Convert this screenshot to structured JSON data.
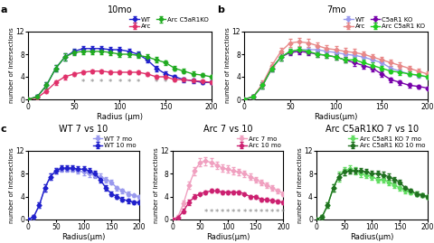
{
  "chart_data": [
    {
      "type": "line",
      "panel_label": "a",
      "title": "10mo",
      "x_label": "Radius (μm)",
      "y_label": "number of intersections",
      "x": [
        0,
        10,
        20,
        30,
        40,
        50,
        60,
        70,
        80,
        90,
        100,
        110,
        120,
        130,
        140,
        150,
        160,
        170,
        180,
        190,
        200
      ],
      "xlim": [
        0,
        200
      ],
      "xticks": [
        0,
        50,
        100,
        150,
        200
      ],
      "ylim": [
        0,
        12
      ],
      "yticks": [
        0,
        4,
        8,
        12
      ],
      "marker": "diamond",
      "legend": "upper right",
      "series": [
        {
          "name": "WT",
          "color": "#2020cc",
          "values": [
            0,
            0.5,
            2.5,
            5.5,
            7.5,
            8.5,
            9.0,
            9.0,
            9.0,
            8.8,
            8.8,
            8.5,
            8.0,
            7.0,
            5.5,
            4.5,
            4.0,
            3.5,
            3.3,
            3.0,
            3.0
          ],
          "err": [
            0,
            0.3,
            0.5,
            0.6,
            0.6,
            0.5,
            0.5,
            0.5,
            0.5,
            0.5,
            0.5,
            0.5,
            0.5,
            0.5,
            0.5,
            0.4,
            0.4,
            0.4,
            0.4,
            0.3,
            0.3
          ]
        },
        {
          "name": "Arc",
          "color": "#e0306a",
          "values": [
            0,
            0.3,
            1.5,
            3.0,
            4.0,
            4.5,
            4.8,
            5.0,
            5.0,
            4.8,
            4.8,
            4.8,
            4.8,
            4.5,
            4.0,
            4.0,
            3.5,
            3.5,
            3.3,
            3.2,
            3.0
          ],
          "err": [
            0,
            0.2,
            0.4,
            0.4,
            0.4,
            0.3,
            0.3,
            0.3,
            0.3,
            0.3,
            0.3,
            0.3,
            0.3,
            0.3,
            0.3,
            0.3,
            0.3,
            0.3,
            0.3,
            0.3,
            0.3
          ]
        },
        {
          "name": "Arc C5aR1KO",
          "color": "#20aa20",
          "values": [
            0,
            0.5,
            2.5,
            5.5,
            7.5,
            8.3,
            8.5,
            8.5,
            8.5,
            8.3,
            8.0,
            8.0,
            7.8,
            7.5,
            7.0,
            6.5,
            5.5,
            5.0,
            4.5,
            4.3,
            4.0
          ],
          "err": [
            0,
            0.3,
            0.5,
            0.6,
            0.6,
            0.5,
            0.5,
            0.5,
            0.5,
            0.5,
            0.5,
            0.5,
            0.5,
            0.5,
            0.5,
            0.4,
            0.4,
            0.4,
            0.4,
            0.3,
            0.3
          ]
        }
      ],
      "annotations": [
        {
          "text": "*",
          "x": 60,
          "y": 2.2
        },
        {
          "text": "*",
          "x": 70,
          "y": 2.2
        },
        {
          "text": "*",
          "x": 80,
          "y": 2.2
        },
        {
          "text": "*",
          "x": 90,
          "y": 2.2
        },
        {
          "text": "*",
          "x": 100,
          "y": 2.2
        },
        {
          "text": "*",
          "x": 110,
          "y": 2.2
        },
        {
          "text": "*",
          "x": 120,
          "y": 2.2
        },
        {
          "text": "*",
          "x": 140,
          "y": 2.2
        },
        {
          "text": "*",
          "x": 150,
          "y": 2.2
        },
        {
          "text": "*",
          "x": 160,
          "y": 2.2
        },
        {
          "text": "*",
          "x": 170,
          "y": 2.2
        }
      ]
    },
    {
      "type": "line",
      "panel_label": "b",
      "title": "7mo",
      "x_label": "Radius(μm)",
      "y_label": "number of intersections",
      "x": [
        0,
        10,
        20,
        30,
        40,
        50,
        60,
        70,
        80,
        90,
        100,
        110,
        120,
        130,
        140,
        150,
        160,
        170,
        180,
        190,
        200
      ],
      "xlim": [
        0,
        200
      ],
      "xticks": [
        0,
        50,
        100,
        150,
        200
      ],
      "ylim": [
        0,
        12
      ],
      "yticks": [
        0,
        4,
        8,
        12
      ],
      "marker": "diamond",
      "legend": "upper right",
      "series": [
        {
          "name": "WT",
          "color": "#9999ee",
          "values": [
            0,
            0.5,
            2.5,
            5.5,
            7.5,
            8.5,
            8.8,
            8.8,
            8.8,
            8.5,
            8.3,
            8.0,
            7.8,
            7.5,
            7.0,
            6.5,
            5.5,
            5.0,
            4.5,
            4.2,
            4.0
          ],
          "err": [
            0,
            0.3,
            0.5,
            0.6,
            0.6,
            0.5,
            0.5,
            0.5,
            0.5,
            0.5,
            0.5,
            0.5,
            0.5,
            0.5,
            0.5,
            0.4,
            0.4,
            0.4,
            0.4,
            0.3,
            0.3
          ]
        },
        {
          "name": "Arc",
          "color": "#e88888",
          "values": [
            0,
            0.5,
            2.8,
            6.0,
            8.5,
            10.0,
            10.2,
            10.0,
            9.5,
            9.0,
            8.8,
            8.5,
            8.3,
            8.0,
            7.5,
            7.0,
            6.5,
            6.0,
            5.5,
            5.0,
            4.5
          ],
          "err": [
            0,
            0.3,
            0.5,
            0.6,
            0.7,
            0.7,
            0.7,
            0.7,
            0.6,
            0.6,
            0.6,
            0.6,
            0.6,
            0.5,
            0.5,
            0.5,
            0.5,
            0.5,
            0.5,
            0.4,
            0.4
          ]
        },
        {
          "name": "C5aR1 KO",
          "color": "#7700aa",
          "values": [
            0,
            0.5,
            2.5,
            5.5,
            7.5,
            8.3,
            8.5,
            8.3,
            8.0,
            7.8,
            7.5,
            7.0,
            6.5,
            6.0,
            5.5,
            4.5,
            3.5,
            3.0,
            2.5,
            2.3,
            2.0
          ],
          "err": [
            0,
            0.3,
            0.5,
            0.6,
            0.6,
            0.5,
            0.5,
            0.5,
            0.5,
            0.5,
            0.5,
            0.5,
            0.5,
            0.5,
            0.5,
            0.5,
            0.4,
            0.4,
            0.4,
            0.3,
            0.3
          ]
        },
        {
          "name": "Arc C5aR1 KO",
          "color": "#20cc20",
          "values": [
            0,
            0.5,
            2.5,
            5.5,
            7.5,
            8.5,
            8.8,
            8.5,
            8.0,
            7.8,
            7.5,
            7.0,
            7.0,
            6.5,
            6.0,
            5.5,
            5.0,
            4.8,
            4.5,
            4.3,
            4.0
          ],
          "err": [
            0,
            0.3,
            0.5,
            0.6,
            0.6,
            0.5,
            0.5,
            0.5,
            0.5,
            0.5,
            0.5,
            0.5,
            0.5,
            0.5,
            0.5,
            0.4,
            0.4,
            0.4,
            0.4,
            0.3,
            0.3
          ]
        }
      ]
    },
    {
      "type": "line",
      "panel_label": "c",
      "title": "WT 7 vs 10",
      "x_label": "Radius(μm)",
      "y_label": "number of intersections",
      "x": [
        0,
        10,
        20,
        30,
        40,
        50,
        60,
        70,
        80,
        90,
        100,
        110,
        120,
        130,
        140,
        150,
        160,
        170,
        180,
        190,
        200
      ],
      "xlim": [
        0,
        200
      ],
      "xticks": [
        0,
        50,
        100,
        150,
        200
      ],
      "ylim": [
        0,
        12
      ],
      "yticks": [
        0,
        4,
        8,
        12
      ],
      "marker": "diamond",
      "legend": "upper right",
      "series": [
        {
          "name": "WT 7 mo",
          "color": "#9999ee",
          "values": [
            0,
            0.5,
            2.5,
            5.5,
            7.5,
            8.5,
            8.8,
            8.8,
            8.8,
            8.5,
            8.3,
            8.0,
            7.8,
            7.5,
            7.0,
            6.5,
            5.5,
            5.0,
            4.5,
            4.2,
            4.0
          ],
          "err": [
            0,
            0.3,
            0.5,
            0.6,
            0.6,
            0.5,
            0.5,
            0.5,
            0.5,
            0.5,
            0.5,
            0.5,
            0.5,
            0.5,
            0.5,
            0.4,
            0.4,
            0.4,
            0.4,
            0.3,
            0.3
          ]
        },
        {
          "name": "WT 10 mo",
          "color": "#2020cc",
          "values": [
            0,
            0.5,
            2.5,
            5.5,
            7.5,
            8.5,
            9.0,
            9.0,
            9.0,
            8.8,
            8.8,
            8.5,
            8.0,
            7.0,
            5.5,
            4.5,
            4.0,
            3.5,
            3.3,
            3.0,
            3.0
          ],
          "err": [
            0,
            0.3,
            0.5,
            0.6,
            0.6,
            0.5,
            0.5,
            0.5,
            0.5,
            0.5,
            0.5,
            0.5,
            0.5,
            0.5,
            0.5,
            0.4,
            0.4,
            0.4,
            0.4,
            0.3,
            0.3
          ]
        }
      ]
    },
    {
      "type": "line",
      "title": "Arc 7 vs 10",
      "x_label": "Radius(μm)",
      "y_label": "number of intersections",
      "x": [
        0,
        10,
        20,
        30,
        40,
        50,
        60,
        70,
        80,
        90,
        100,
        110,
        120,
        130,
        140,
        150,
        160,
        170,
        180,
        190,
        200
      ],
      "xlim": [
        0,
        200
      ],
      "xticks": [
        0,
        50,
        100,
        150,
        200
      ],
      "ylim": [
        0,
        12
      ],
      "yticks": [
        0,
        4,
        8,
        12
      ],
      "marker": "diamond",
      "legend": "upper right",
      "series": [
        {
          "name": "Arc 7 mo",
          "color": "#f0a0c0",
          "values": [
            0,
            0.5,
            2.8,
            6.0,
            8.5,
            10.0,
            10.2,
            10.0,
            9.5,
            9.0,
            8.8,
            8.5,
            8.3,
            8.0,
            7.5,
            7.0,
            6.5,
            6.0,
            5.5,
            5.0,
            4.5
          ],
          "err": [
            0,
            0.3,
            0.5,
            0.6,
            0.7,
            0.7,
            0.7,
            0.7,
            0.6,
            0.6,
            0.6,
            0.6,
            0.6,
            0.5,
            0.5,
            0.5,
            0.5,
            0.5,
            0.5,
            0.4,
            0.4
          ]
        },
        {
          "name": "Arc 10 mo",
          "color": "#cc2070",
          "values": [
            0,
            0.3,
            1.5,
            3.0,
            4.0,
            4.5,
            4.8,
            5.0,
            5.0,
            4.8,
            4.8,
            4.8,
            4.8,
            4.5,
            4.0,
            4.0,
            3.5,
            3.5,
            3.3,
            3.2,
            3.0
          ],
          "err": [
            0,
            0.2,
            0.4,
            0.4,
            0.4,
            0.3,
            0.3,
            0.3,
            0.3,
            0.3,
            0.3,
            0.3,
            0.3,
            0.3,
            0.3,
            0.3,
            0.3,
            0.3,
            0.3,
            0.3,
            0.3
          ]
        }
      ],
      "annotations": [
        {
          "text": "*",
          "x": 60,
          "y": 0.5
        },
        {
          "text": "*",
          "x": 70,
          "y": 0.5
        },
        {
          "text": "*",
          "x": 80,
          "y": 0.5
        },
        {
          "text": "*",
          "x": 90,
          "y": 0.5
        },
        {
          "text": "*",
          "x": 100,
          "y": 0.5
        },
        {
          "text": "*",
          "x": 110,
          "y": 0.5
        },
        {
          "text": "*",
          "x": 120,
          "y": 0.5
        },
        {
          "text": "*",
          "x": 130,
          "y": 0.5
        },
        {
          "text": "*",
          "x": 140,
          "y": 0.5
        },
        {
          "text": "*",
          "x": 150,
          "y": 0.5
        },
        {
          "text": "*",
          "x": 160,
          "y": 0.5
        },
        {
          "text": "*",
          "x": 170,
          "y": 0.5
        },
        {
          "text": "*",
          "x": 180,
          "y": 0.5
        },
        {
          "text": "*",
          "x": 190,
          "y": 0.5
        },
        {
          "text": "*",
          "x": 200,
          "y": 0.5
        }
      ]
    },
    {
      "type": "line",
      "title": "Arc C5aR1KO 7 vs 10",
      "x_label": "Radius(μm)",
      "y_label": "number of intersections",
      "x": [
        0,
        10,
        20,
        30,
        40,
        50,
        60,
        70,
        80,
        90,
        100,
        110,
        120,
        130,
        140,
        150,
        160,
        170,
        180,
        190,
        200
      ],
      "xlim": [
        0,
        200
      ],
      "xticks": [
        0,
        50,
        100,
        150,
        200
      ],
      "ylim": [
        0,
        12
      ],
      "yticks": [
        0,
        4,
        8,
        12
      ],
      "marker": "diamond",
      "legend": "upper right",
      "series": [
        {
          "name": "Arc C5aR1 KO 7 mo",
          "color": "#60dd60",
          "values": [
            0,
            0.5,
            2.5,
            5.5,
            7.5,
            8.5,
            8.8,
            8.5,
            8.0,
            7.8,
            7.5,
            7.0,
            7.0,
            6.5,
            6.0,
            5.5,
            5.0,
            4.8,
            4.5,
            4.3,
            4.0
          ],
          "err": [
            0,
            0.3,
            0.5,
            0.6,
            0.8,
            0.7,
            0.7,
            0.6,
            0.5,
            0.5,
            0.5,
            0.5,
            0.5,
            0.5,
            0.5,
            0.4,
            0.4,
            0.4,
            0.4,
            0.3,
            0.3
          ]
        },
        {
          "name": "Arc C5aR1 KO 10 mo",
          "color": "#207020",
          "values": [
            0,
            0.5,
            2.5,
            5.5,
            7.5,
            8.3,
            8.5,
            8.5,
            8.5,
            8.3,
            8.0,
            8.0,
            7.8,
            7.5,
            7.0,
            6.5,
            5.5,
            5.0,
            4.5,
            4.3,
            4.0
          ],
          "err": [
            0,
            0.3,
            0.5,
            0.6,
            0.6,
            0.5,
            0.5,
            0.5,
            0.5,
            0.5,
            0.5,
            0.5,
            0.5,
            0.5,
            0.5,
            0.4,
            0.4,
            0.4,
            0.4,
            0.3,
            0.3
          ]
        }
      ]
    }
  ]
}
